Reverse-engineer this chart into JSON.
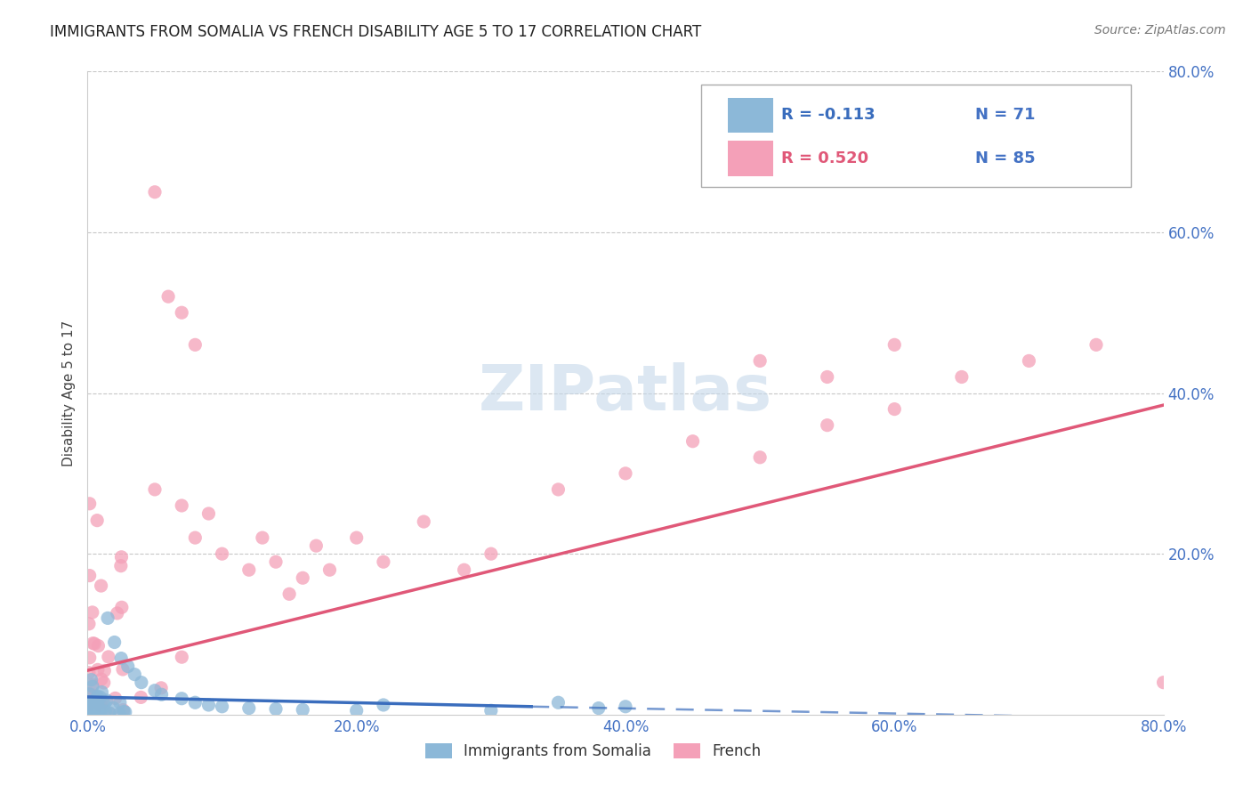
{
  "title": "IMMIGRANTS FROM SOMALIA VS FRENCH DISABILITY AGE 5 TO 17 CORRELATION CHART",
  "source": "Source: ZipAtlas.com",
  "ylabel": "Disability Age 5 to 17",
  "xlim": [
    0.0,
    0.8
  ],
  "ylim": [
    0.0,
    0.8
  ],
  "xticks": [
    0.0,
    0.2,
    0.4,
    0.6,
    0.8
  ],
  "yticks": [
    0.0,
    0.2,
    0.4,
    0.6,
    0.8
  ],
  "xticklabels": [
    "0.0%",
    "20.0%",
    "40.0%",
    "60.0%",
    "80.0%"
  ],
  "yticklabels": [
    "",
    "20.0%",
    "40.0%",
    "60.0%",
    "80.0%"
  ],
  "legend_labels": [
    "Immigrants from Somalia",
    "French"
  ],
  "somalia_color": "#8cb8d8",
  "french_color": "#f4a0b8",
  "somalia_line_color": "#3a6dbd",
  "french_line_color": "#e05878",
  "background_color": "#ffffff",
  "grid_color": "#c8c8c8",
  "axis_label_color": "#4472c4",
  "title_color": "#222222",
  "somalia_trend": {
    "x_start": 0.0,
    "x_end": 0.33,
    "y_start": 0.022,
    "y_end": 0.01,
    "x_dash_start": 0.33,
    "x_dash_end": 0.8,
    "y_dash_start": 0.01,
    "y_dash_end": -0.005
  },
  "french_trend": {
    "x_start": 0.0,
    "x_end": 0.8,
    "y_start": 0.055,
    "y_end": 0.385
  },
  "watermark_text": "ZIPatlas",
  "watermark_color": "#c5d8ea",
  "legend_r1": "R = -0.113",
  "legend_n1": "N = 71",
  "legend_r2": "R = 0.520",
  "legend_n2": "N = 85"
}
